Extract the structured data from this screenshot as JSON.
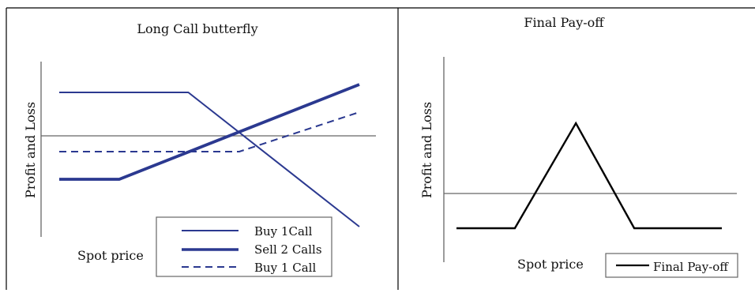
{
  "colors": {
    "series": "#2b3990",
    "payoff": "#000000",
    "axis": "#666666",
    "frame": "#000000"
  },
  "chart_data": [
    {
      "type": "line",
      "title": "Long Call butterfly",
      "xlabel": "Spot price",
      "ylabel": "Profit and Loss",
      "xlim": [
        0,
        100
      ],
      "ylim": [
        -10,
        10
      ],
      "grid": false,
      "legend_position": "bottom-right",
      "series": [
        {
          "name": "Buy 1Call",
          "style": "solid-thin",
          "x": [
            0,
            43,
            100
          ],
          "y": [
            6,
            6,
            -11
          ]
        },
        {
          "name": "Sell 2 Calls",
          "style": "solid-thick",
          "x": [
            0,
            20,
            100
          ],
          "y": [
            -5,
            -5,
            7
          ]
        },
        {
          "name": "Buy 1 Call",
          "style": "dashed",
          "x": [
            0,
            60,
            100
          ],
          "y": [
            -1.5,
            -1.5,
            3.5
          ]
        }
      ]
    },
    {
      "type": "line",
      "title": "Final Pay-off",
      "xlabel": "Spot price",
      "ylabel": "Profit and Loss",
      "xlim": [
        0,
        100
      ],
      "ylim": [
        -10,
        10
      ],
      "grid": false,
      "legend_position": "bottom-right",
      "series": [
        {
          "name": "Final Pay-off",
          "style": "solid",
          "x": [
            0,
            22,
            45,
            67,
            100
          ],
          "y": [
            -4,
            -4,
            11,
            -4,
            -4
          ]
        }
      ]
    }
  ]
}
